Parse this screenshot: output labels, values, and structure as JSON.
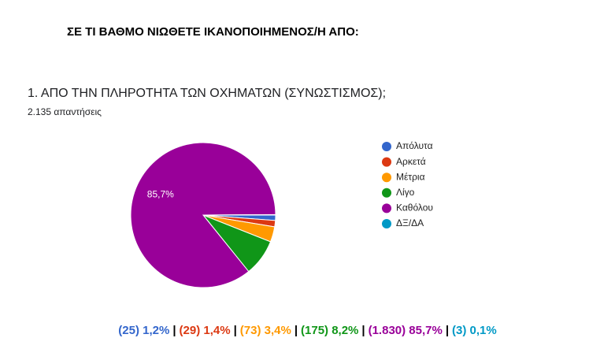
{
  "header": {
    "title": "ΣΕ ΤΙ ΒΑΘΜΟ ΝΙΩΘΕΤΕ ΙΚΑΝΟΠΟΙΗΜΕΝΟΣ/Η ΑΠΟ:"
  },
  "chart_data": {
    "type": "pie",
    "title": "1. ΑΠΟ ΤΗΝ ΠΛΗΡΟΤΗΤΑ ΤΩΝ ΟΧΗΜΑΤΩΝ (ΣΥΝΩΣΤΙΣΜΟΣ);",
    "subtitle": "2.135 απαντήσεις",
    "categories": [
      "Απόλυτα",
      "Αρκετά",
      "Μέτρια",
      "Λίγο",
      "Καθόλου",
      "ΔΞ/ΔΑ"
    ],
    "values": [
      1.2,
      1.4,
      3.4,
      8.2,
      85.7,
      0.1
    ],
    "value_labels": [
      null,
      null,
      null,
      null,
      "85,7%",
      null
    ],
    "colors": [
      "#3366cc",
      "#dc3912",
      "#ff9900",
      "#109618",
      "#990099",
      "#0099c6"
    ],
    "legend": "right"
  },
  "footer": {
    "items": [
      "(25) 1,2%",
      "(29) 1,4%",
      "(73) 3,4%",
      "(175) 8,2%",
      "(1.830) 85,7%",
      "(3) 0,1%"
    ],
    "separator": "|"
  }
}
